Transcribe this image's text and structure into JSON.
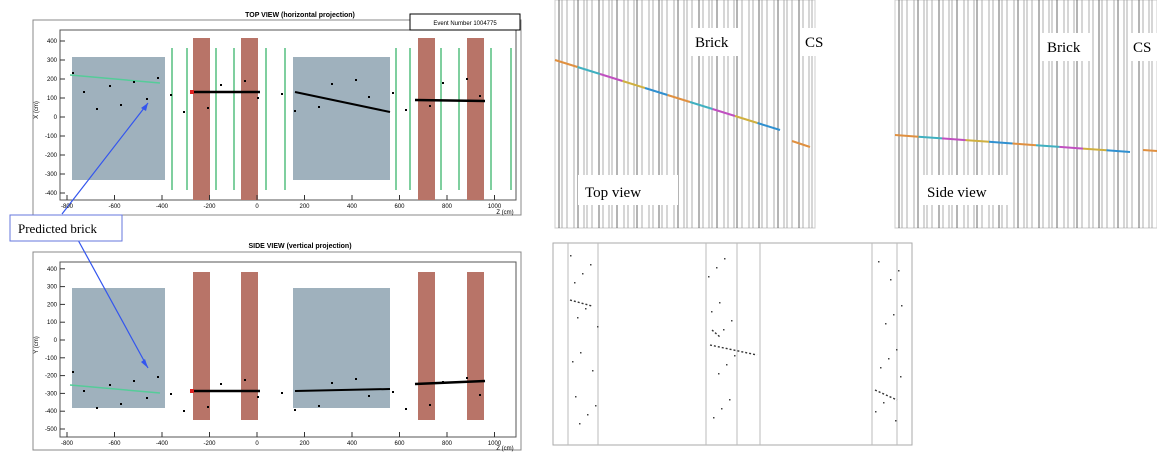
{
  "top_view": {
    "title": "TOP VIEW (horizontal projection)",
    "event_label": "Event Number 1004775",
    "y_axis_label": "X (cm)",
    "x_axis_label": "Z (cm)",
    "yticks": [
      400,
      300,
      200,
      100,
      0,
      -100,
      -200,
      -300,
      -400
    ],
    "xticks": [
      -800,
      -600,
      -400,
      -200,
      0,
      200,
      400,
      600,
      800,
      1000
    ]
  },
  "side_view": {
    "title": "SIDE VIEW (vertical projection)",
    "y_axis_label": "Y (cm)",
    "x_axis_label": "Z (cm)",
    "yticks": [
      400,
      300,
      200,
      100,
      0,
      -100,
      -200,
      -300,
      -400,
      -500
    ],
    "xticks": [
      -800,
      -600,
      -400,
      -200,
      0,
      200,
      400,
      600,
      800,
      1000
    ]
  },
  "annotation": "Predicted brick",
  "microscope_top": {
    "brick_label": "Brick",
    "cs_label": "CS",
    "view_label": "Top view"
  },
  "microscope_side": {
    "brick_label": "Brick",
    "cs_label": "CS",
    "view_label": "Side view"
  }
}
